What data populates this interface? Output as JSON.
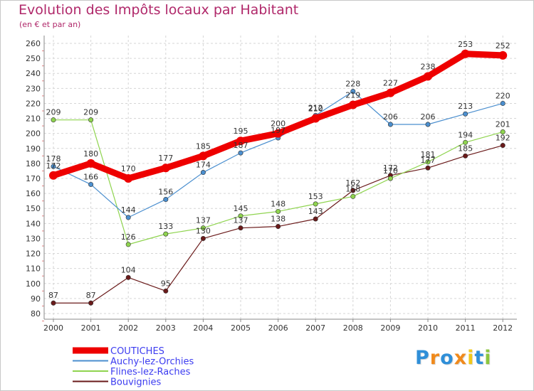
{
  "chart_data": {
    "type": "line",
    "title": "Evolution des Impôts locaux par Habitant",
    "subtitle": "(en € et par an)",
    "xlabel": "",
    "ylabel": "",
    "x": [
      "2000",
      "2001",
      "2002",
      "2003",
      "2004",
      "2005",
      "2006",
      "2007",
      "2008",
      "2009",
      "2010",
      "2011",
      "2012"
    ],
    "ylim": [
      80,
      260
    ],
    "yticks": [
      "80",
      "90",
      "100",
      "110",
      "120",
      "130",
      "140",
      "150",
      "160",
      "170",
      "180",
      "190",
      "200",
      "210",
      "220",
      "230",
      "240",
      "250",
      "260"
    ],
    "grid": true,
    "legend_position": "bottom-left",
    "series": [
      {
        "name": "COUTICHES",
        "color": "#ee0000",
        "values": [
          172,
          180,
          170,
          177,
          185,
          195,
          200,
          210,
          219,
          227,
          238,
          253,
          252
        ]
      },
      {
        "name": "Auchy-lez-Orchies",
        "color": "#4b8fcf",
        "values": [
          178,
          166,
          144,
          156,
          174,
          187,
          197,
          212,
          228,
          206,
          206,
          213,
          220
        ]
      },
      {
        "name": "Flines-lez-Raches",
        "color": "#8fd44f",
        "values": [
          209,
          209,
          126,
          133,
          137,
          145,
          148,
          153,
          158,
          170,
          181,
          194,
          201
        ]
      },
      {
        "name": "Bouvignies",
        "color": "#6a1a1a",
        "values": [
          87,
          87,
          104,
          95,
          130,
          137,
          138,
          143,
          162,
          172,
          177,
          185,
          192
        ]
      }
    ]
  },
  "logo": {
    "letters": [
      "P",
      "r",
      "o",
      "x",
      "i",
      "t",
      "i"
    ],
    "colors": [
      "#2f8fd8",
      "#f08a1c",
      "#2f8fd8",
      "#f08a1c",
      "#f0c81c",
      "#2f8fd8",
      "#8cc63f"
    ]
  }
}
